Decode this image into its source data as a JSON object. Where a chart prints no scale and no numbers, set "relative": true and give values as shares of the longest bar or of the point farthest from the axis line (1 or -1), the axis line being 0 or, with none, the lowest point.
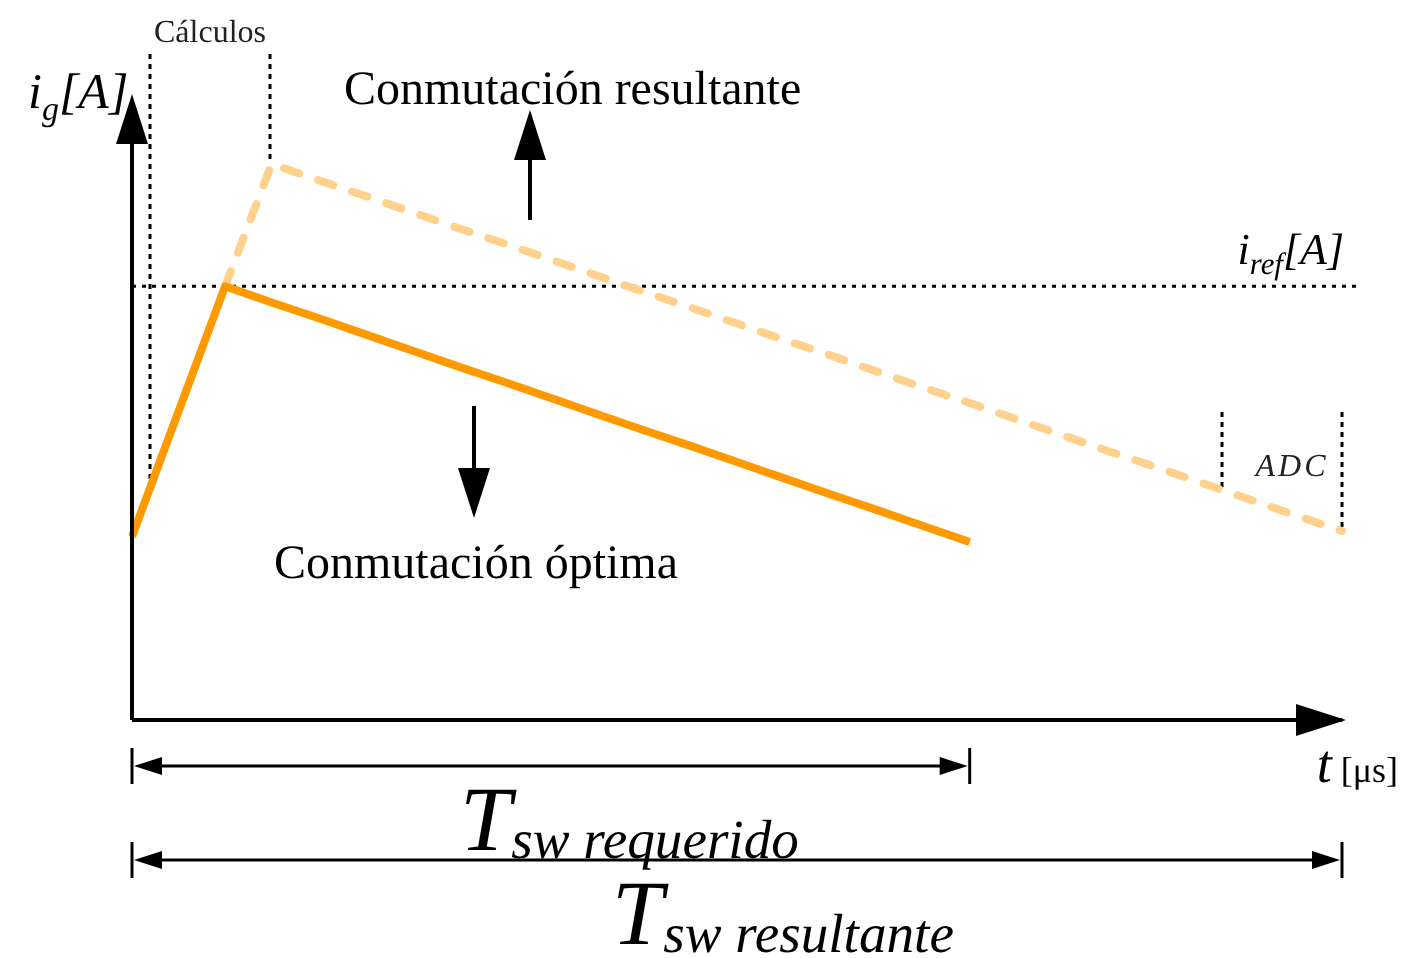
{
  "chart_data": {
    "type": "line",
    "relative": true,
    "xlabel": "t [μs]",
    "ylabel": "i$_{g}$[A]",
    "categories": [
      null,
      null,
      null,
      null,
      null,
      null,
      null,
      null,
      null,
      null,
      null,
      null,
      null,
      null,
      null,
      null,
      null,
      null,
      null,
      null,
      null,
      null,
      null,
      null,
      null,
      null,
      null
    ],
    "series": [
      {
        "color": "#ff9900",
        "line_style": "solid",
        "values": [
          0.33,
          0.555,
          0.78,
          0.751,
          0.723,
          0.694,
          0.665,
          0.636,
          0.608,
          0.579,
          0.55,
          0.521,
          0.493,
          0.464,
          0.435,
          0.406,
          0.378,
          0.349,
          0.32,
          null,
          null,
          null,
          null,
          null,
          null,
          null,
          null
        ]
      },
      {
        "color": "#ffd18c",
        "line_style": "dashed",
        "values": [
          null,
          null,
          0.78,
          1,
          0.971,
          0.943,
          0.914,
          0.885,
          0.857,
          0.828,
          0.799,
          0.77,
          0.742,
          0.713,
          0.684,
          0.656,
          0.627,
          0.598,
          0.57,
          0.541,
          0.512,
          0.483,
          0.455,
          0.426,
          0.397,
          0.368,
          0.34
        ]
      }
    ],
    "ref_lines": [
      {
        "axis": "y",
        "value": 0.78,
        "label": "i$_{ref}$[A]",
        "color": "#000000",
        "line_style": "dotted"
      }
    ],
    "annotations": [
      "Cálculos",
      "Conmutación resultante",
      "ADC",
      "Conmutación óptima",
      "T$_{sw requerido}$",
      "T$_{sw resultante}$"
    ]
  }
}
